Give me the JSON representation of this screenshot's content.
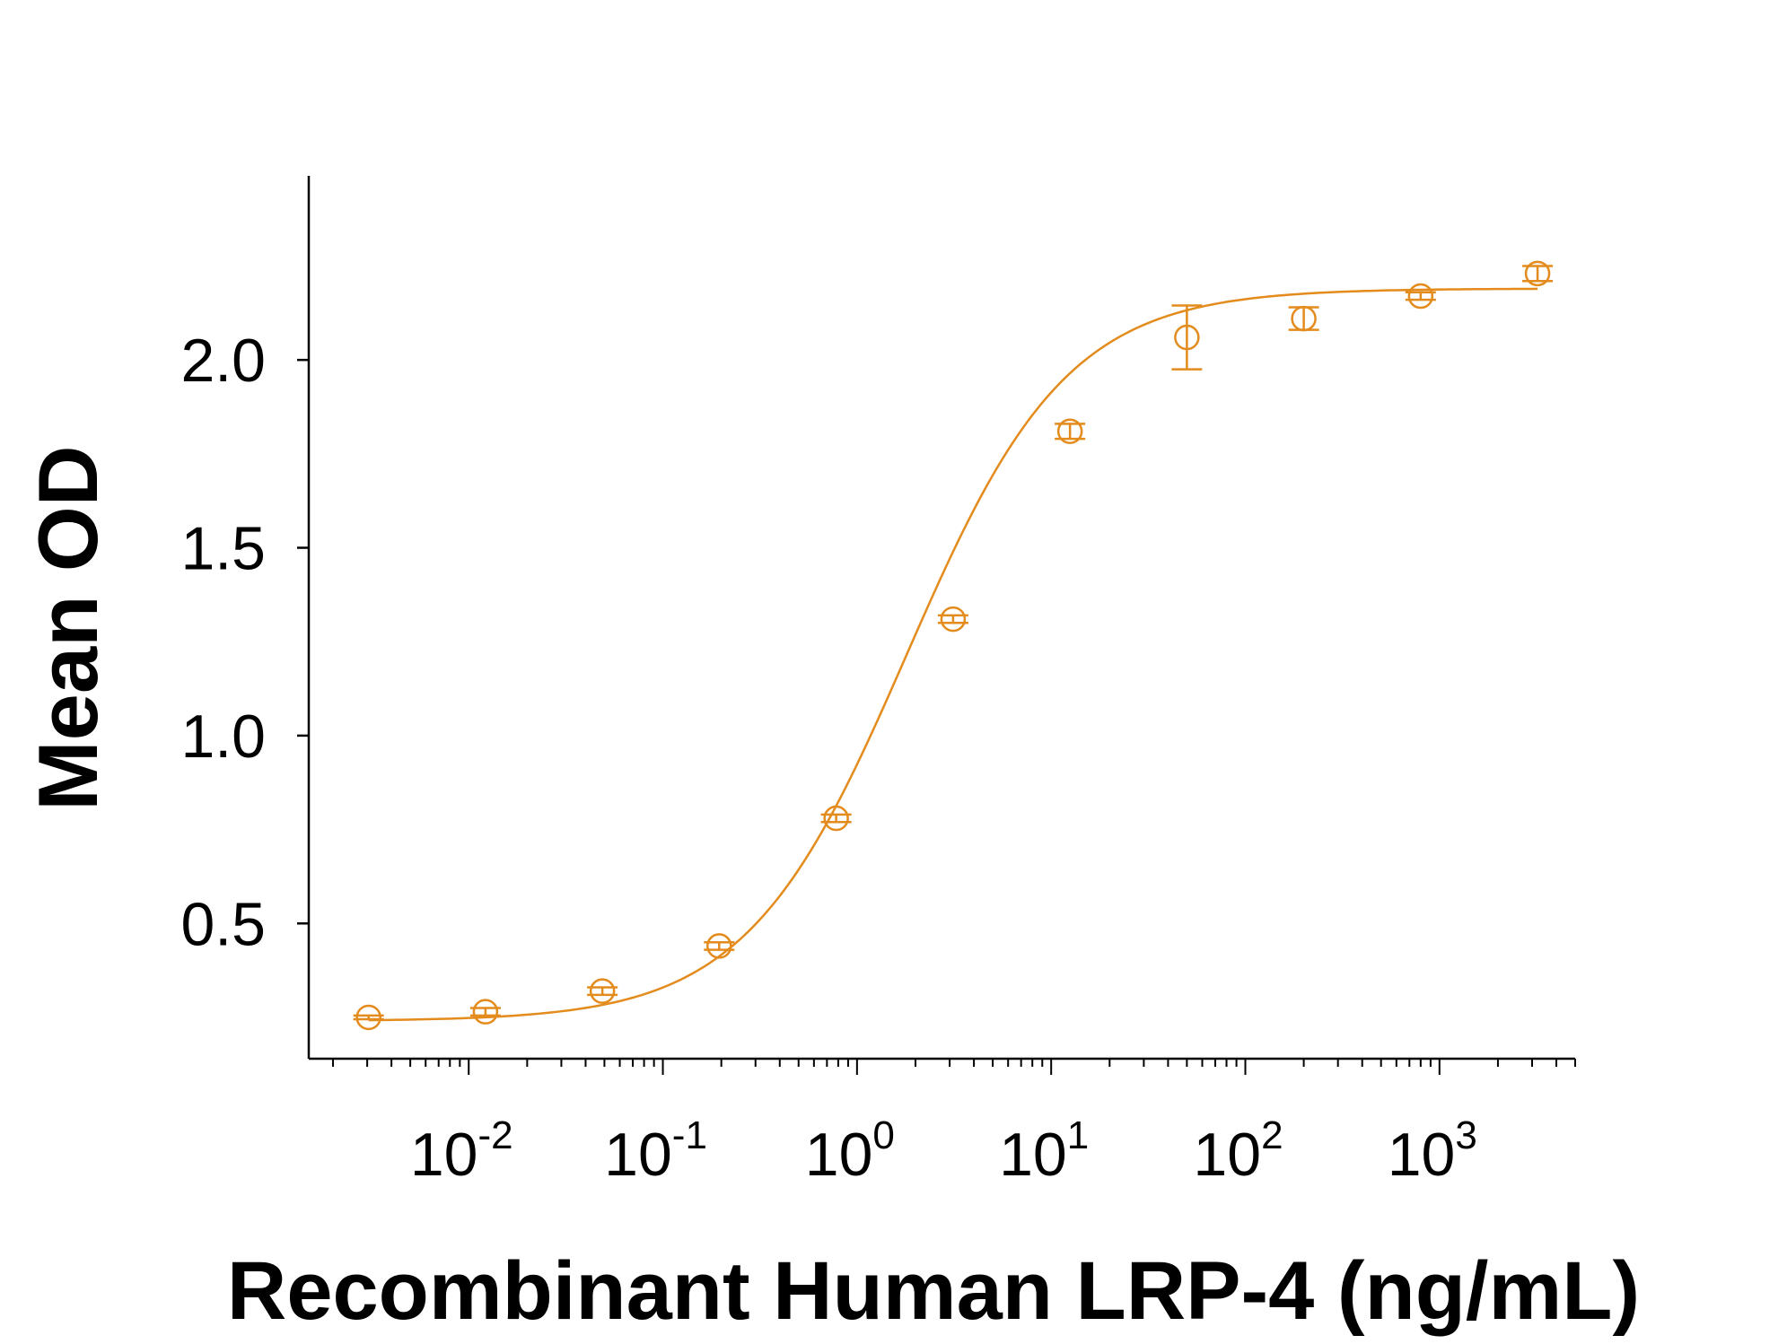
{
  "chart_data": {
    "type": "scatter",
    "title": "",
    "xlabel": "Recombinant Human LRP-4 (ng/mL)",
    "ylabel": "Mean OD",
    "x_scale": "log",
    "xlim": [
      0.0015,
      5000
    ],
    "ylim": [
      0.14,
      2.49
    ],
    "x_ticks": [
      {
        "base": "10",
        "exp": "-2",
        "value": 0.01
      },
      {
        "base": "10",
        "exp": "-1",
        "value": 0.1
      },
      {
        "base": "10",
        "exp": "0",
        "value": 1
      },
      {
        "base": "10",
        "exp": "1",
        "value": 10
      },
      {
        "base": "10",
        "exp": "2",
        "value": 100
      },
      {
        "base": "10",
        "exp": "3",
        "value": 1000
      }
    ],
    "y_ticks": [
      {
        "label": "0.5",
        "value": 0.5
      },
      {
        "label": "1.0",
        "value": 1.0
      },
      {
        "label": "1.5",
        "value": 1.5
      },
      {
        "label": "2.0",
        "value": 2.0
      }
    ],
    "grid": false,
    "color": "#E38B1C",
    "series": [
      {
        "points": [
          {
            "x": 0.00305,
            "y": 0.25,
            "err": 0.005
          },
          {
            "x": 0.0122,
            "y": 0.265,
            "err": 0.01
          },
          {
            "x": 0.0488,
            "y": 0.32,
            "err": 0.01
          },
          {
            "x": 0.195,
            "y": 0.44,
            "err": 0.01
          },
          {
            "x": 0.781,
            "y": 0.78,
            "err": 0.01
          },
          {
            "x": 3.125,
            "y": 1.31,
            "err": 0.01
          },
          {
            "x": 12.5,
            "y": 1.81,
            "err": 0.02
          },
          {
            "x": 50,
            "y": 2.06,
            "err": 0.085
          },
          {
            "x": 200,
            "y": 2.11,
            "err": 0.03
          },
          {
            "x": 800,
            "y": 2.17,
            "err": 0.01
          },
          {
            "x": 3200,
            "y": 2.23,
            "err": 0.02
          }
        ],
        "fit": {
          "model": "4PL",
          "bottom": 0.24,
          "top": 2.19,
          "ec50": 1.8,
          "hill": 1.05
        }
      }
    ]
  }
}
